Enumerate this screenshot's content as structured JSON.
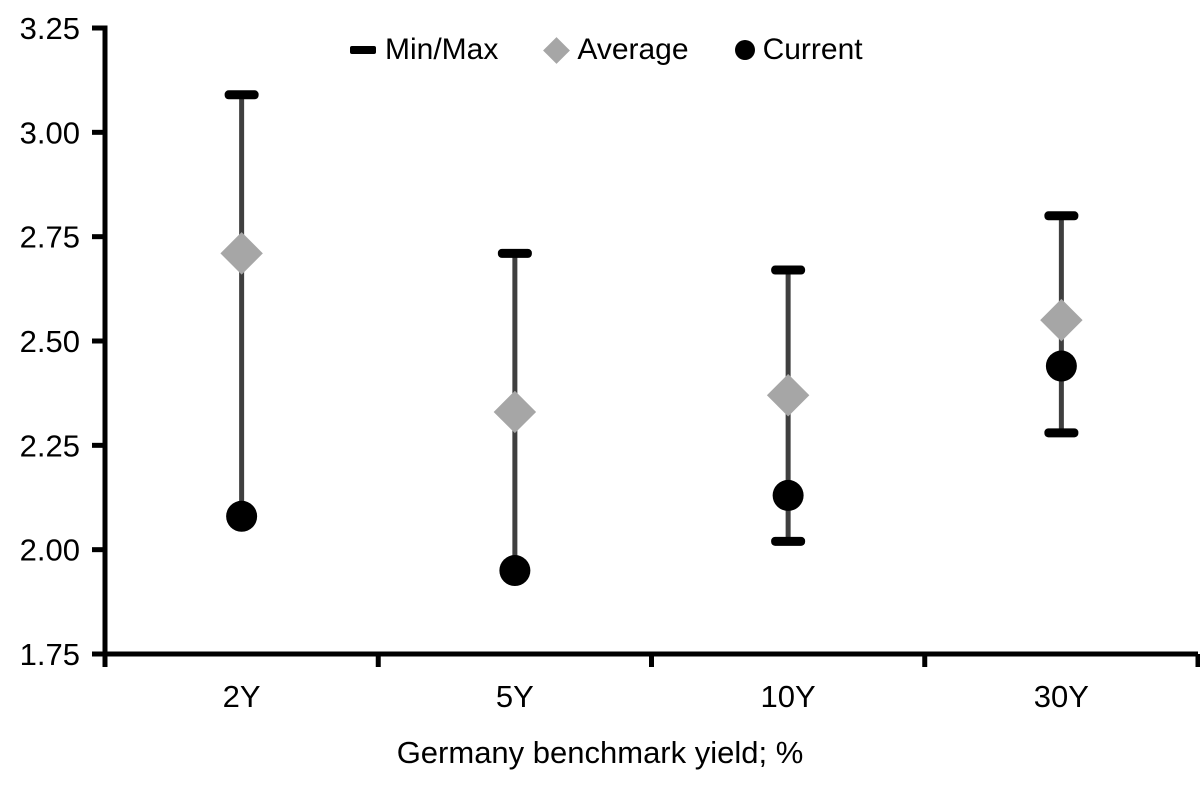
{
  "page": {
    "background": "#ffffff"
  },
  "legend": {
    "items": [
      {
        "label": "Min/Max",
        "marker": "dash"
      },
      {
        "label": "Average",
        "marker": "diamond"
      },
      {
        "label": "Current",
        "marker": "circle"
      }
    ]
  },
  "chart_data": {
    "type": "scatter",
    "subtype": "high-low range whiskers with average (diamond) and current (circle) markers",
    "categories": [
      "2Y",
      "5Y",
      "10Y",
      "30Y"
    ],
    "series": [
      {
        "name": "Min/Max",
        "role": "range",
        "min": [
          2.08,
          1.95,
          2.02,
          2.28
        ],
        "max": [
          3.09,
          2.71,
          2.67,
          2.8
        ]
      },
      {
        "name": "Average",
        "role": "point",
        "marker": "diamond",
        "values": [
          2.71,
          2.33,
          2.37,
          2.55
        ]
      },
      {
        "name": "Current",
        "role": "point",
        "marker": "circle",
        "values": [
          2.08,
          1.95,
          2.13,
          2.44
        ]
      }
    ],
    "title": "",
    "xlabel": "Germany benchmark yield; %",
    "ylabel": "",
    "ylim": [
      1.75,
      3.25
    ],
    "ytick_step": 0.25,
    "ytick_labels": [
      "3.25",
      "3.00",
      "2.75",
      "2.50",
      "2.25",
      "2.00",
      "1.75"
    ],
    "grid": false,
    "legend_position": "top-center",
    "colors": {
      "range_line": "#3f3f3f",
      "range_cap": "#000000",
      "average": "#a6a6a6",
      "current": "#000000",
      "axis": "#000000",
      "text": "#000000"
    }
  }
}
